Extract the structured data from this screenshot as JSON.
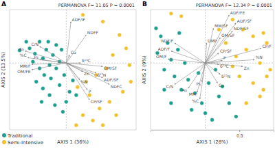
{
  "chart_data": [
    {
      "type": "scatter",
      "title": "A",
      "annotation": "PERMANOVA F= 11.05 P = 0.0001",
      "x_label": "AXIS 1 (36%)",
      "y_label": "AXIS 2 (13.5%)",
      "xlim": [
        -0.85,
        1.05
      ],
      "ylim": [
        -1.0,
        0.8
      ],
      "origin": [
        0,
        0
      ],
      "tick_labels": false,
      "legend": "bottom-left",
      "series": [
        {
          "name": "Traditional",
          "color": "#1b9e8d",
          "x": [
            -0.7,
            -0.6,
            -0.55,
            -0.47,
            -0.4,
            -0.35,
            -0.3,
            -0.25,
            -0.2,
            -0.15,
            -0.4,
            -0.33,
            -0.23,
            -0.1,
            -0.35,
            -0.25,
            -0.17,
            -0.05,
            0.0,
            0.05,
            -0.45,
            -0.5,
            -0.1,
            -0.07,
            -0.03,
            -0.27,
            -0.15,
            -0.37,
            0.1,
            0.15
          ],
          "y": [
            0.19,
            0.32,
            0.22,
            0.14,
            0.32,
            0.07,
            0.2,
            -0.03,
            0.12,
            -0.08,
            -0.08,
            -0.18,
            -0.23,
            -0.33,
            -0.38,
            -0.48,
            -0.63,
            -0.73,
            -0.58,
            -0.43,
            -0.28,
            0.02,
            0.02,
            0.2,
            -0.18,
            0.32,
            0.27,
            -0.58,
            -0.26,
            -0.48
          ]
        },
        {
          "name": "Semi-Intensive",
          "color": "#f0c12b",
          "x": [
            0.25,
            0.55,
            0.8,
            0.9,
            0.95,
            0.6,
            0.45,
            0.3,
            0.35,
            0.65,
            0.5,
            0.75,
            0.25,
            0.15,
            0.55,
            0.4,
            0.97,
            0.85,
            0.7,
            0.17
          ],
          "y": [
            0.72,
            0.62,
            0.42,
            0.22,
            -0.03,
            -0.08,
            -0.18,
            -0.28,
            -0.48,
            -0.58,
            -0.68,
            -0.78,
            -0.78,
            -0.93,
            -0.93,
            -0.86,
            -0.28,
            -0.43,
            0.12,
            -0.36
          ]
        }
      ],
      "vectors": [
        {
          "label": "ADF/IF",
          "x": 0.07,
          "y": 0.62
        },
        {
          "label": "NDFF",
          "x": 0.3,
          "y": 0.42
        },
        {
          "label": "Cu",
          "x": 0.05,
          "y": 0.12
        },
        {
          "label": "As",
          "x": -0.62,
          "y": 0.18
        },
        {
          "label": "%C",
          "x": -0.58,
          "y": 0.08
        },
        {
          "label": "C/N",
          "x": -0.4,
          "y": 0.25
        },
        {
          "label": "MM/F",
          "x": -0.52,
          "y": -0.02
        },
        {
          "label": "OM/FE",
          "x": -0.52,
          "y": -0.1
        },
        {
          "label": "Ps",
          "x": -0.4,
          "y": 0.05
        },
        {
          "label": "δ¹³C",
          "x": 0.22,
          "y": 0.0
        },
        {
          "label": "OM/SF",
          "x": 0.55,
          "y": -0.05
        },
        {
          "label": "Zn",
          "x": 0.25,
          "y": -0.13
        },
        {
          "label": "δ¹⁵N",
          "x": 0.45,
          "y": -0.15
        },
        {
          "label": "%N",
          "x": 0.2,
          "y": -0.25
        },
        {
          "label": "ADF/SF",
          "x": 0.55,
          "y": -0.22
        },
        {
          "label": "NDFC",
          "x": 0.65,
          "y": -0.32
        },
        {
          "label": "P",
          "x": 0.32,
          "y": -0.4
        },
        {
          "label": "CP/SF",
          "x": 0.35,
          "y": -0.55
        }
      ]
    },
    {
      "type": "scatter",
      "title": "B",
      "annotation": "PERMANOVA F= 12.34 P = 0.0001",
      "x_label": "AXIS 1 (28%)",
      "y_label": "AXIS 2 (9%)",
      "xlim": [
        -0.8,
        1.0
      ],
      "ylim": [
        -1.0,
        0.8
      ],
      "origin": [
        0,
        0
      ],
      "xticks": [
        0.5
      ],
      "tick_labels": "x",
      "series": [
        {
          "name": "Traditional",
          "color": "#1b9e8d",
          "x": [
            -0.72,
            -0.65,
            -0.55,
            -0.7,
            -0.5,
            -0.4,
            -0.3,
            -0.6,
            -0.45,
            -0.25,
            -0.35,
            -0.15,
            -0.05,
            0.0,
            0.1,
            -0.2,
            0.2,
            0.35,
            0.45,
            -0.1,
            0.05,
            0.25,
            -0.6,
            -0.5,
            0.15,
            -0.38
          ],
          "y": [
            0.52,
            0.4,
            0.3,
            0.15,
            0.05,
            0.2,
            0.0,
            -0.1,
            -0.2,
            -0.25,
            -0.4,
            -0.45,
            -0.6,
            -0.75,
            -0.85,
            -0.7,
            -0.5,
            -0.6,
            -0.8,
            -0.15,
            -0.3,
            -0.35,
            -0.4,
            -0.6,
            -0.1,
            0.45
          ]
        },
        {
          "name": "Semi-Intensive",
          "color": "#f0c12b",
          "x": [
            -0.5,
            -0.35,
            0.4,
            0.55,
            0.7,
            0.85,
            0.9,
            0.6,
            0.8,
            0.95,
            0.5,
            0.7,
            0.85,
            0.4,
            0.3,
            0.8,
            0.6,
            0.9,
            0.45,
            0.2
          ],
          "y": [
            0.74,
            0.7,
            0.65,
            0.5,
            0.4,
            0.45,
            0.3,
            0.2,
            0.0,
            -0.1,
            -0.2,
            -0.3,
            -0.4,
            -0.05,
            0.3,
            -0.5,
            -0.6,
            -0.2,
            0.1,
            0.5
          ]
        }
      ],
      "vectors": [
        {
          "label": "ADF/FE",
          "x": 0.35,
          "y": 0.72
        },
        {
          "label": "ADF/SF",
          "x": 0.45,
          "y": 0.6
        },
        {
          "label": "MM/SF",
          "x": 0.12,
          "y": 0.52
        },
        {
          "label": "NDF/SF",
          "x": 0.4,
          "y": 0.48
        },
        {
          "label": "OM/SF",
          "x": 0.22,
          "y": 0.38
        },
        {
          "label": "DMP",
          "x": 0.02,
          "y": 0.3
        },
        {
          "label": "NDF/F",
          "x": -0.45,
          "y": 0.3
        },
        {
          "label": "ADF/F",
          "x": -0.5,
          "y": 0.18
        },
        {
          "label": "OM/F",
          "x": -0.55,
          "y": 0.06
        },
        {
          "label": "CP/SF",
          "x": 0.2,
          "y": 0.15
        },
        {
          "label": "P",
          "x": 0.25,
          "y": 0.04
        },
        {
          "label": "CP/F",
          "x": 0.82,
          "y": 0.22
        },
        {
          "label": "%N",
          "x": 0.72,
          "y": 0.05
        },
        {
          "label": "Zn",
          "x": 0.55,
          "y": -0.05
        },
        {
          "label": "δ¹³C",
          "x": 0.2,
          "y": -0.02
        },
        {
          "label": "δ¹⁵N",
          "x": 0.22,
          "y": -0.17
        },
        {
          "label": "Cu",
          "x": 0.18,
          "y": -0.3
        },
        {
          "label": "C/N",
          "x": -0.45,
          "y": -0.32
        },
        {
          "label": "As",
          "x": -0.25,
          "y": -0.38
        },
        {
          "label": "Ps",
          "x": -0.05,
          "y": -0.28
        },
        {
          "label": "MM",
          "x": -0.12,
          "y": -0.44
        },
        {
          "label": "%C",
          "x": -0.08,
          "y": -0.54
        }
      ]
    }
  ]
}
